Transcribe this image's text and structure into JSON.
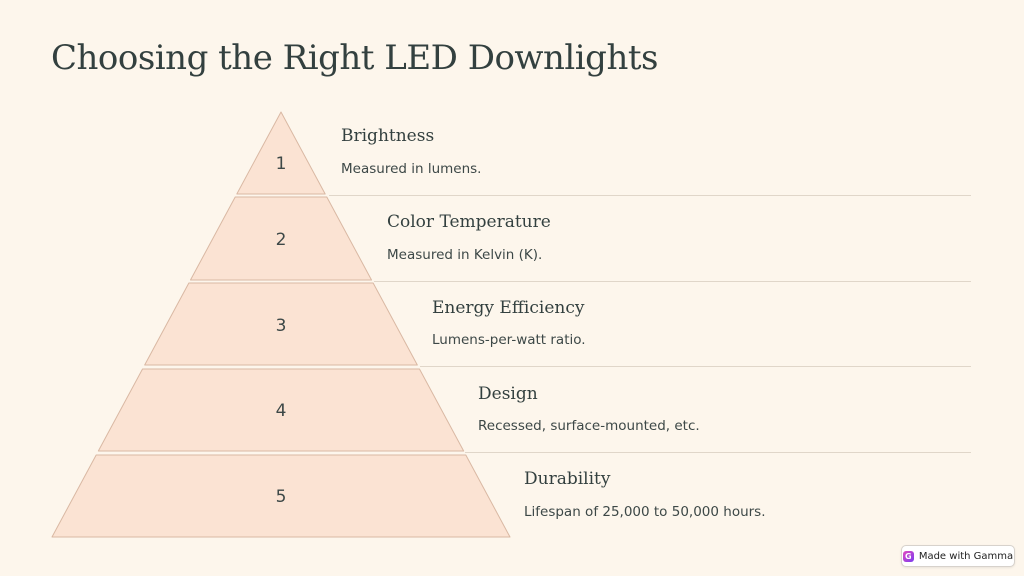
{
  "page": {
    "title": "Choosing the Right LED Downlights"
  },
  "pyramid": {
    "fill_color": "#fbe3d3",
    "stroke_color": "#d9b8a3",
    "tiers": [
      {
        "number": "1",
        "title": "Brightness",
        "description": "Measured in lumens."
      },
      {
        "number": "2",
        "title": "Color Temperature",
        "description": "Measured in Kelvin (K)."
      },
      {
        "number": "3",
        "title": "Energy Efficiency",
        "description": "Lumens-per-watt ratio."
      },
      {
        "number": "4",
        "title": "Design",
        "description": "Recessed, surface-mounted, etc."
      },
      {
        "number": "5",
        "title": "Durability",
        "description": "Lifespan of 25,000 to 50,000 hours."
      }
    ]
  },
  "badge": {
    "label": "Made with Gamma",
    "icon": "gamma-logo-icon"
  }
}
